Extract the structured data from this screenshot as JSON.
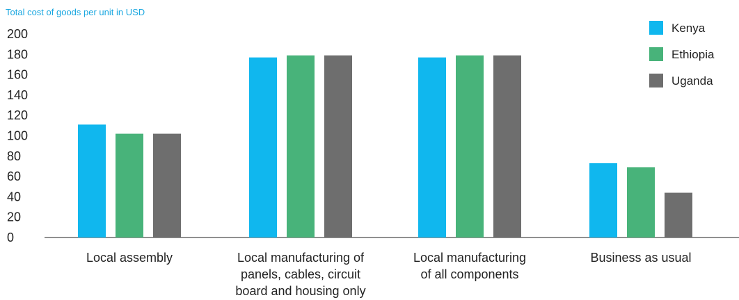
{
  "chart_data": {
    "type": "bar",
    "ylabel": "Total cost of goods per unit in USD",
    "ylim": [
      0,
      200
    ],
    "yticks": [
      "200",
      "180",
      "160",
      "140",
      "120",
      "100",
      "80",
      "60",
      "40",
      "20",
      "0"
    ],
    "categories": [
      [
        "Local assembly"
      ],
      [
        "Local manufacturing of",
        "panels, cables, circuit",
        "board and housing only"
      ],
      [
        "Local manufacturing",
        "of all components"
      ],
      [
        "Business as usual"
      ]
    ],
    "series": [
      {
        "name": "Kenya",
        "color": "#10b7ee",
        "values": [
          111,
          177,
          177,
          73
        ]
      },
      {
        "name": "Ethiopia",
        "color": "#48b37a",
        "values": [
          102,
          179,
          179,
          69
        ]
      },
      {
        "name": "Uganda",
        "color": "#6e6e6e",
        "values": [
          102,
          179,
          179,
          44
        ]
      }
    ],
    "legend_position": "top-right",
    "grid": false
  }
}
